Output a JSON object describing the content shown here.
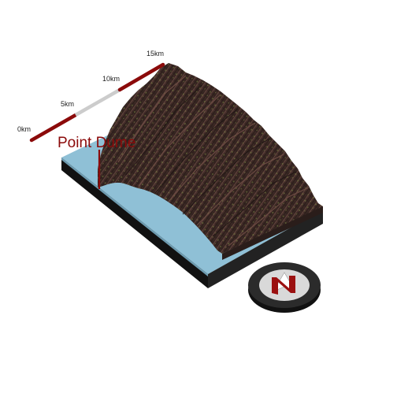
{
  "map": {
    "place_label": "Point Dume",
    "colors": {
      "water": "#8fc0d6",
      "terrain_dark": "#3d2a26",
      "terrain_mid": "#5a3a34",
      "terrain_highlight": "#7c8a44",
      "base_side": "#111111",
      "accent_red": "#8b0a0a"
    }
  },
  "scale_bar": {
    "ticks": [
      "0km",
      "5km",
      "10km",
      "15km"
    ],
    "segment_colors": [
      "#8b0a0a",
      "#cccccc",
      "#8b0a0a"
    ]
  },
  "compass": {
    "icon": "north-arrow-icon",
    "letter": "N"
  }
}
